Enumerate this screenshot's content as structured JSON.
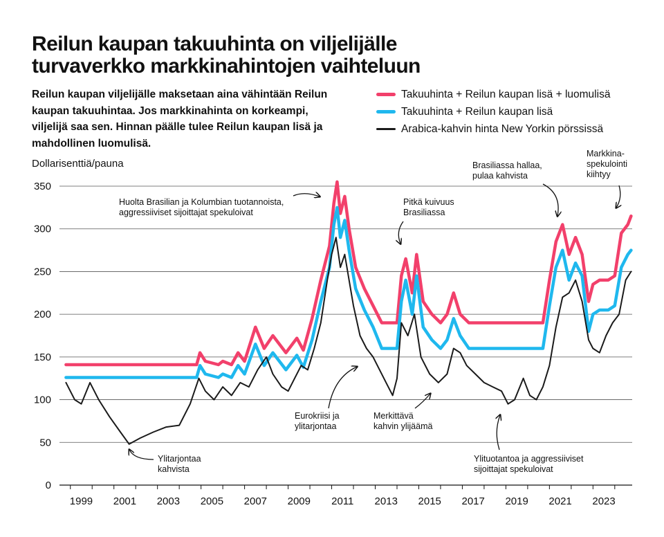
{
  "title_line1": "Reilun kaupan takuuhinta on viljelijälle",
  "title_line2": "turvaverkko markkinahintojen vaihteluun",
  "subtitle": "Reilun kaupan viljelijälle maksetaan aina vähintään Reilun kaupan takuuhintaa. Jos markkinahinta on korkeampi, viljelijä saa sen. Hinnan päälle tulee Reilun kaupan lisä ja mahdollinen luomulisä.",
  "colors": {
    "organic": "#f2406b",
    "fairtrade": "#1fb8ee",
    "market": "#1a1a1a",
    "grid": "#555555"
  },
  "chart_data": {
    "type": "line",
    "ylabel": "Dollarisenttiä/pauna",
    "xlabel": "",
    "ylim": [
      0,
      350
    ],
    "yticks": [
      0,
      50,
      100,
      150,
      200,
      250,
      300,
      350
    ],
    "xticks": [
      "1999",
      "2001",
      "2003",
      "2005",
      "2007",
      "2009",
      "2011",
      "2013",
      "2015",
      "2017",
      "2019",
      "2021",
      "2023"
    ],
    "xrange": [
      1998.5,
      2024.8
    ],
    "grid": true,
    "legend_placement": "top-right",
    "series": [
      {
        "name": "Takuuhinta + Reilun kaupan lisä + luomulisä",
        "color": "#f2406b",
        "x": [
          1998.8,
          1999.9,
          2000.3,
          2002.0,
          2004.8,
          2004.95,
          2005.2,
          2005.8,
          2006.0,
          2006.4,
          2006.7,
          2007.0,
          2007.5,
          2007.9,
          2008.3,
          2008.9,
          2009.4,
          2009.7,
          2010.1,
          2010.5,
          2010.9,
          2011.1,
          2011.25,
          2011.4,
          2011.6,
          2011.8,
          2012.1,
          2012.5,
          2012.9,
          2013.3,
          2014.0,
          2014.2,
          2014.4,
          2014.7,
          2014.9,
          2015.2,
          2015.6,
          2016.0,
          2016.3,
          2016.6,
          2016.9,
          2017.3,
          2018.0,
          2019.0,
          2020.0,
          2020.7,
          2021.0,
          2021.3,
          2021.6,
          2021.9,
          2022.2,
          2022.5,
          2022.8,
          2023.0,
          2023.3,
          2023.7,
          2024.0,
          2024.3,
          2024.6,
          2024.75
        ],
        "values": [
          141,
          141,
          141,
          141,
          141,
          155,
          145,
          141,
          145,
          141,
          155,
          145,
          185,
          160,
          175,
          155,
          172,
          158,
          195,
          240,
          280,
          330,
          355,
          318,
          338,
          300,
          255,
          230,
          210,
          190,
          190,
          245,
          265,
          225,
          270,
          215,
          200,
          190,
          200,
          225,
          200,
          190,
          190,
          190,
          190,
          190,
          240,
          285,
          305,
          270,
          290,
          270,
          215,
          235,
          240,
          240,
          245,
          295,
          305,
          315
        ]
      },
      {
        "name": "Takuuhinta + Reilun kaupan lisä",
        "color": "#1fb8ee",
        "x": [
          1998.8,
          1999.9,
          2000.3,
          2002.0,
          2004.8,
          2004.95,
          2005.2,
          2005.8,
          2006.0,
          2006.4,
          2006.7,
          2007.0,
          2007.5,
          2007.9,
          2008.3,
          2008.9,
          2009.4,
          2009.7,
          2010.1,
          2010.5,
          2010.9,
          2011.1,
          2011.25,
          2011.4,
          2011.6,
          2011.8,
          2012.1,
          2012.5,
          2012.9,
          2013.3,
          2014.0,
          2014.2,
          2014.4,
          2014.7,
          2014.9,
          2015.2,
          2015.6,
          2016.0,
          2016.3,
          2016.6,
          2016.9,
          2017.3,
          2018.0,
          2019.0,
          2020.0,
          2020.7,
          2021.0,
          2021.3,
          2021.6,
          2021.9,
          2022.2,
          2022.5,
          2022.8,
          2023.0,
          2023.3,
          2023.7,
          2024.0,
          2024.3,
          2024.6,
          2024.75
        ],
        "values": [
          126,
          126,
          126,
          126,
          126,
          140,
          130,
          126,
          130,
          126,
          140,
          130,
          165,
          140,
          155,
          135,
          152,
          138,
          170,
          215,
          255,
          305,
          325,
          290,
          310,
          275,
          230,
          205,
          185,
          160,
          160,
          215,
          240,
          200,
          245,
          185,
          170,
          160,
          170,
          195,
          175,
          160,
          160,
          160,
          160,
          160,
          210,
          255,
          275,
          240,
          260,
          245,
          180,
          200,
          205,
          205,
          210,
          255,
          270,
          275
        ]
      },
      {
        "name": "Arabica-kahvin hinta New Yorkin pörssissä",
        "color": "#1a1a1a",
        "x": [
          1998.8,
          1999.2,
          1999.5,
          1999.9,
          2000.3,
          2000.8,
          2001.3,
          2001.7,
          2002.2,
          2002.8,
          2003.4,
          2004.0,
          2004.5,
          2004.9,
          2005.2,
          2005.6,
          2006.0,
          2006.4,
          2006.8,
          2007.2,
          2007.6,
          2008.0,
          2008.3,
          2008.7,
          2009.0,
          2009.3,
          2009.6,
          2009.9,
          2010.2,
          2010.5,
          2010.8,
          2011.0,
          2011.2,
          2011.4,
          2011.6,
          2011.8,
          2012.0,
          2012.3,
          2012.6,
          2012.9,
          2013.2,
          2013.5,
          2013.8,
          2014.0,
          2014.2,
          2014.5,
          2014.8,
          2015.1,
          2015.5,
          2015.9,
          2016.3,
          2016.6,
          2016.9,
          2017.2,
          2017.6,
          2018.0,
          2018.4,
          2018.8,
          2019.1,
          2019.4,
          2019.8,
          2020.1,
          2020.4,
          2020.7,
          2021.0,
          2021.3,
          2021.6,
          2021.9,
          2022.2,
          2022.5,
          2022.8,
          2023.0,
          2023.3,
          2023.6,
          2023.9,
          2024.2,
          2024.5,
          2024.75
        ],
        "values": [
          120,
          100,
          95,
          120,
          100,
          80,
          62,
          48,
          55,
          62,
          68,
          70,
          95,
          125,
          110,
          100,
          115,
          105,
          120,
          115,
          135,
          150,
          130,
          115,
          110,
          125,
          140,
          135,
          160,
          190,
          240,
          270,
          290,
          255,
          270,
          240,
          210,
          175,
          160,
          150,
          135,
          120,
          105,
          125,
          190,
          175,
          200,
          150,
          130,
          120,
          130,
          160,
          155,
          140,
          130,
          120,
          115,
          110,
          95,
          100,
          125,
          105,
          100,
          115,
          140,
          185,
          220,
          225,
          240,
          215,
          170,
          160,
          155,
          175,
          190,
          200,
          240,
          250
        ]
      }
    ],
    "annotations": [
      {
        "lines": [
          "Huolta Brasilian ja Kolumbian tuotannoista,",
          "aggressiiviset sijoittajat spekuloivat"
        ]
      },
      {
        "lines": [
          "Pitkä kuivuus",
          "Brasiliassa"
        ]
      },
      {
        "lines": [
          "Brasiliassa hallaa,",
          "pulaa kahvista"
        ]
      },
      {
        "lines": [
          "Markkina-",
          "spekulointi",
          "kiihtyy"
        ]
      },
      {
        "lines": [
          "Ylitarjontaa",
          "kahvista"
        ]
      },
      {
        "lines": [
          "Eurokriisi ja",
          "ylitarjontaa"
        ]
      },
      {
        "lines": [
          "Merkittävä",
          "kahvin ylijäämä"
        ]
      },
      {
        "lines": [
          "Ylituotantoa ja aggressiiviset",
          "sijoittajat spekuloivat"
        ]
      }
    ]
  }
}
